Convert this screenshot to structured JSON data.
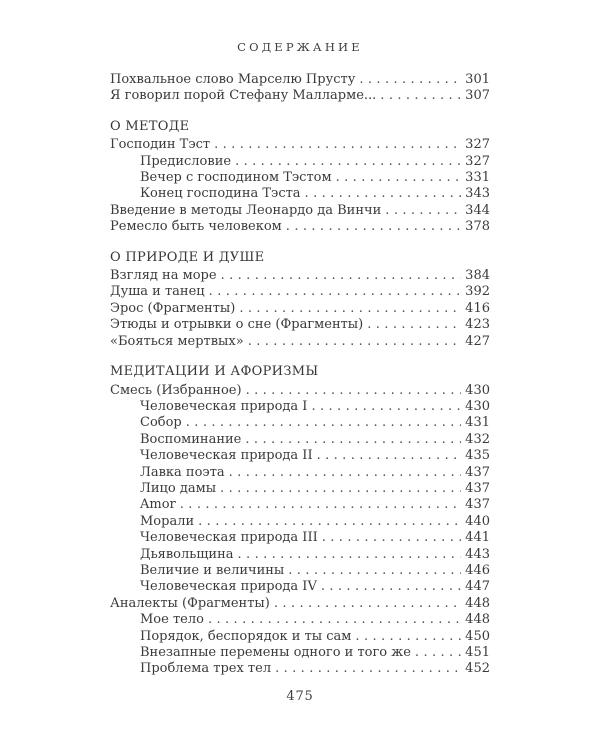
{
  "page": {
    "heading": "СОДЕРЖАНИЕ",
    "footer_page_number": "475"
  },
  "colors": {
    "background": "#ffffff",
    "text": "#3a3a3a",
    "dots": "#4d4d4d"
  },
  "toc": {
    "groups": [
      {
        "section": null,
        "items": [
          {
            "title": "Похвальное слово Марселю Прусту",
            "page": "301",
            "indent": 0
          },
          {
            "title": "Я говорил порой Стефану Малларме...",
            "page": "307",
            "indent": 0
          }
        ]
      },
      {
        "section": "О МЕТОДЕ",
        "items": [
          {
            "title": "Господин Тэст",
            "page": "327",
            "indent": 0
          },
          {
            "title": "Предисловие",
            "page": "327",
            "indent": 1
          },
          {
            "title": "Вечер с господином Тэстом",
            "page": "331",
            "indent": 1
          },
          {
            "title": "Конец господина Тэста",
            "page": "343",
            "indent": 1
          },
          {
            "title": "Введение в методы Леонардо да Винчи",
            "page": "344",
            "indent": 0
          },
          {
            "title": "Ремесло быть человеком",
            "page": "378",
            "indent": 0
          }
        ]
      },
      {
        "section": "О ПРИРОДЕ И ДУШЕ",
        "items": [
          {
            "title": "Взгляд на море",
            "page": "384",
            "indent": 0
          },
          {
            "title": "Душа и танец",
            "page": "392",
            "indent": 0
          },
          {
            "title": "Эрос (Фрагменты)",
            "page": "416",
            "indent": 0
          },
          {
            "title": "Этюды и отрывки о сне (Фрагменты)",
            "page": "423",
            "indent": 0
          },
          {
            "title": "«Бояться мертвых»",
            "page": "427",
            "indent": 0
          }
        ]
      },
      {
        "section": "МЕДИТАЦИИ И АФОРИЗМЫ",
        "items": [
          {
            "title": "Смесь (Избранное)",
            "page": "430",
            "indent": 0
          },
          {
            "title": "Человеческая природа I",
            "page": "430",
            "indent": 1
          },
          {
            "title": "Собор",
            "page": "431",
            "indent": 1
          },
          {
            "title": "Воспоминание",
            "page": "432",
            "indent": 1
          },
          {
            "title": "Человеческая природа II",
            "page": "435",
            "indent": 1
          },
          {
            "title": "Лавка поэта",
            "page": "437",
            "indent": 1
          },
          {
            "title": "Лицо дамы",
            "page": "437",
            "indent": 1
          },
          {
            "title": "Amor",
            "page": "437",
            "indent": 1
          },
          {
            "title": "Морали",
            "page": "440",
            "indent": 1
          },
          {
            "title": "Человеческая природа III",
            "page": "441",
            "indent": 1
          },
          {
            "title": "Дьявольщина",
            "page": "443",
            "indent": 1
          },
          {
            "title": "Величие и величины",
            "page": "446",
            "indent": 1
          },
          {
            "title": "Человеческая природа IV",
            "page": "447",
            "indent": 1
          },
          {
            "title": "Аналекты (Фрагменты)",
            "page": "448",
            "indent": 0
          },
          {
            "title": "Мое тело",
            "page": "448",
            "indent": 1
          },
          {
            "title": "Порядок, беспорядок и ты сам",
            "page": "450",
            "indent": 1
          },
          {
            "title": "Внезапные перемены одного и того же",
            "page": "451",
            "indent": 1
          },
          {
            "title": "Проблема трех тел",
            "page": "452",
            "indent": 1
          }
        ]
      }
    ]
  }
}
